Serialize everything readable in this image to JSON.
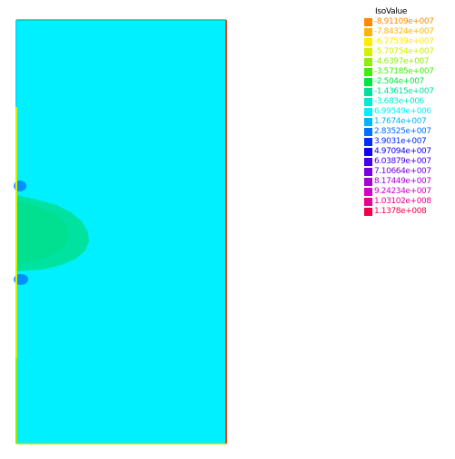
{
  "legend": {
    "title": "IsoValue",
    "entries": [
      {
        "label": "-8.91109e+007",
        "color": "#ff8a00"
      },
      {
        "label": "-7.84324e+007",
        "color": "#ffb400"
      },
      {
        "label": "-6.77539e+007",
        "color": "#ffea00"
      },
      {
        "label": "-5.70754e+007",
        "color": "#d2f000"
      },
      {
        "label": "-4.6397e+007",
        "color": "#8ef000"
      },
      {
        "label": "-3.57185e+007",
        "color": "#3ef000"
      },
      {
        "label": "-2.504e+007",
        "color": "#00e640"
      },
      {
        "label": "-1.43615e+007",
        "color": "#00e09a"
      },
      {
        "label": "-3.683e+006",
        "color": "#00ecd0"
      },
      {
        "label": "6.99549e+006",
        "color": "#00f0ff"
      },
      {
        "label": "1.7674e+007",
        "color": "#00b4ff"
      },
      {
        "label": "2.83525e+007",
        "color": "#0070ff"
      },
      {
        "label": "3.9031e+007",
        "color": "#002cff"
      },
      {
        "label": "4.97094e+007",
        "color": "#1000f0"
      },
      {
        "label": "6.03879e+007",
        "color": "#4600e8"
      },
      {
        "label": "7.10664e+007",
        "color": "#7800e0"
      },
      {
        "label": "8.17449e+007",
        "color": "#a800d8"
      },
      {
        "label": "9.24234e+007",
        "color": "#d000c8"
      },
      {
        "label": "1.03102e+008",
        "color": "#e80090"
      },
      {
        "label": "1.1378e+008",
        "color": "#f00048"
      }
    ]
  },
  "plot": {
    "background_color": "#00f0ff",
    "plume_color": "#00e09a",
    "spot_color": "#0070ff",
    "left_edge_color": "#d2f000",
    "right_edge_color": "#f00048"
  }
}
